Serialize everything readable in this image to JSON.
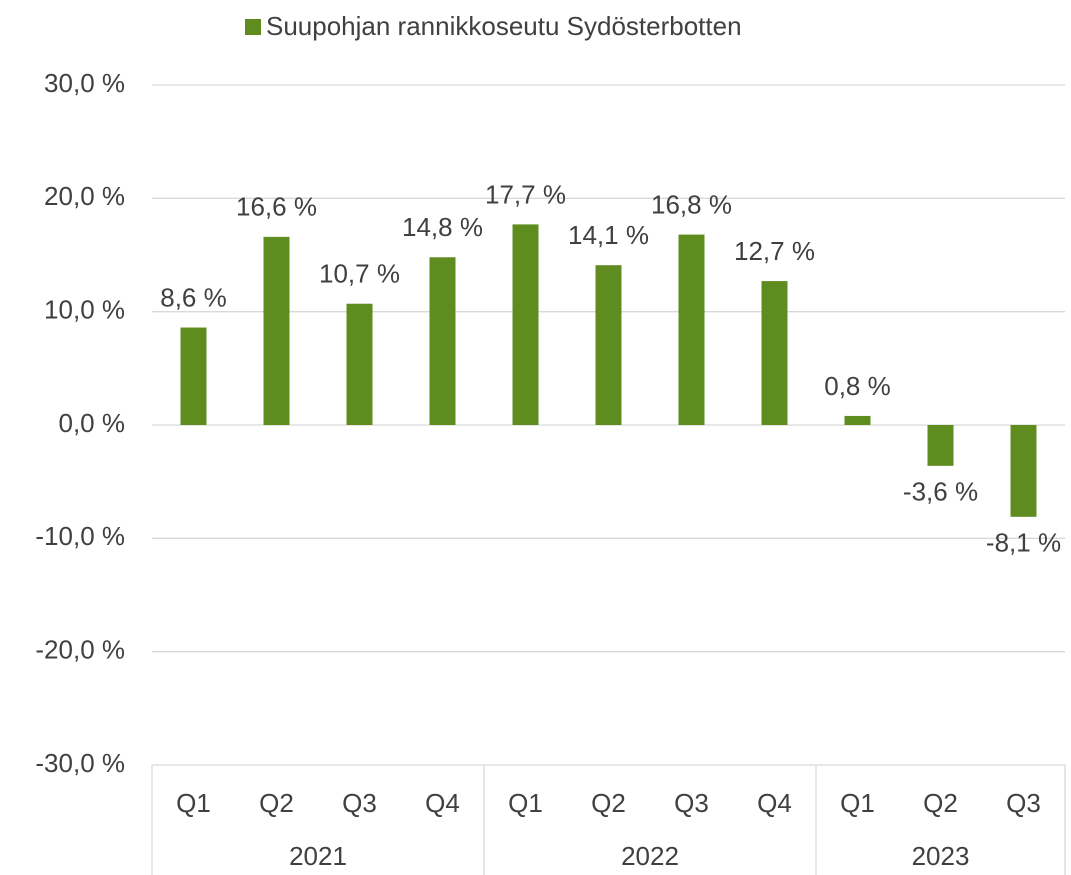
{
  "chart_data": {
    "type": "bar",
    "series": [
      {
        "name": "Suupohjan rannikkoseutu Sydösterbotten",
        "color": "#5e8c1f",
        "values": [
          8.6,
          16.6,
          10.7,
          14.8,
          17.7,
          14.1,
          16.8,
          12.7,
          0.8,
          -3.6,
          -8.1
        ],
        "value_labels": [
          "8,6 %",
          "16,6 %",
          "10,7 %",
          "14,8 %",
          "17,7 %",
          "14,1 %",
          "16,8 %",
          "12,7 %",
          "0,8 %",
          "-3,6 %",
          "-8,1 %"
        ]
      }
    ],
    "groups": [
      {
        "name": "2021",
        "categories": [
          "Q1",
          "Q2",
          "Q3",
          "Q4"
        ]
      },
      {
        "name": "2022",
        "categories": [
          "Q1",
          "Q2",
          "Q3",
          "Q4"
        ]
      },
      {
        "name": "2023",
        "categories": [
          "Q1",
          "Q2",
          "Q3"
        ]
      }
    ],
    "ylim": [
      -30,
      30
    ],
    "yticks": [
      {
        "value": -30,
        "label": "-30,0 %"
      },
      {
        "value": -20,
        "label": "-20,0 %"
      },
      {
        "value": -10,
        "label": "-10,0 %"
      },
      {
        "value": 0,
        "label": "0,0 %"
      },
      {
        "value": 10,
        "label": "10,0 %"
      },
      {
        "value": 20,
        "label": "20,0 %"
      },
      {
        "value": 30,
        "label": "30,0 %"
      }
    ],
    "grid": true,
    "legend": "top"
  }
}
